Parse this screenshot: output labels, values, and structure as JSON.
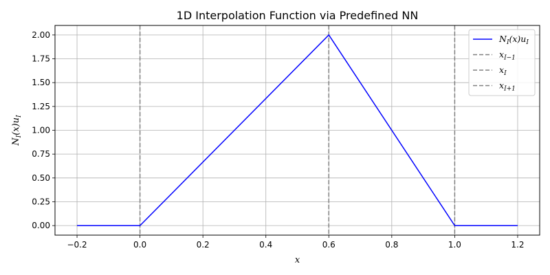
{
  "chart_data": {
    "type": "line",
    "title": "1D Interpolation Function via Predefined NN",
    "xlabel": "x",
    "ylabel": "N_I(x)u_I",
    "xlim": [
      -0.27,
      1.27
    ],
    "ylim": [
      -0.1,
      2.1
    ],
    "x_ticks": [
      -0.2,
      0.0,
      0.2,
      0.4,
      0.6,
      0.8,
      1.0,
      1.2
    ],
    "x_tick_labels": [
      "−0.2",
      "0.0",
      "0.2",
      "0.4",
      "0.6",
      "0.8",
      "1.0",
      "1.2"
    ],
    "y_ticks": [
      0.0,
      0.25,
      0.5,
      0.75,
      1.0,
      1.25,
      1.5,
      1.75,
      2.0
    ],
    "y_tick_labels": [
      "0.00",
      "0.25",
      "0.50",
      "0.75",
      "1.00",
      "1.25",
      "1.50",
      "1.75",
      "2.00"
    ],
    "grid": true,
    "legend_position": "top-right",
    "series": [
      {
        "name": "N_I(x)u_I",
        "color": "#0000ff",
        "style": "solid",
        "x": [
          -0.2,
          0.0,
          0.6,
          1.0,
          1.2
        ],
        "y": [
          0.0,
          0.0,
          2.0,
          0.0,
          0.0
        ]
      }
    ],
    "vlines": [
      {
        "name": "x_{I-1}",
        "x": 0.0,
        "color": "#808080",
        "style": "dashed"
      },
      {
        "name": "x_I",
        "x": 0.6,
        "color": "#808080",
        "style": "dashed"
      },
      {
        "name": "x_{I+1}",
        "x": 1.0,
        "color": "#808080",
        "style": "dashed"
      }
    ]
  }
}
